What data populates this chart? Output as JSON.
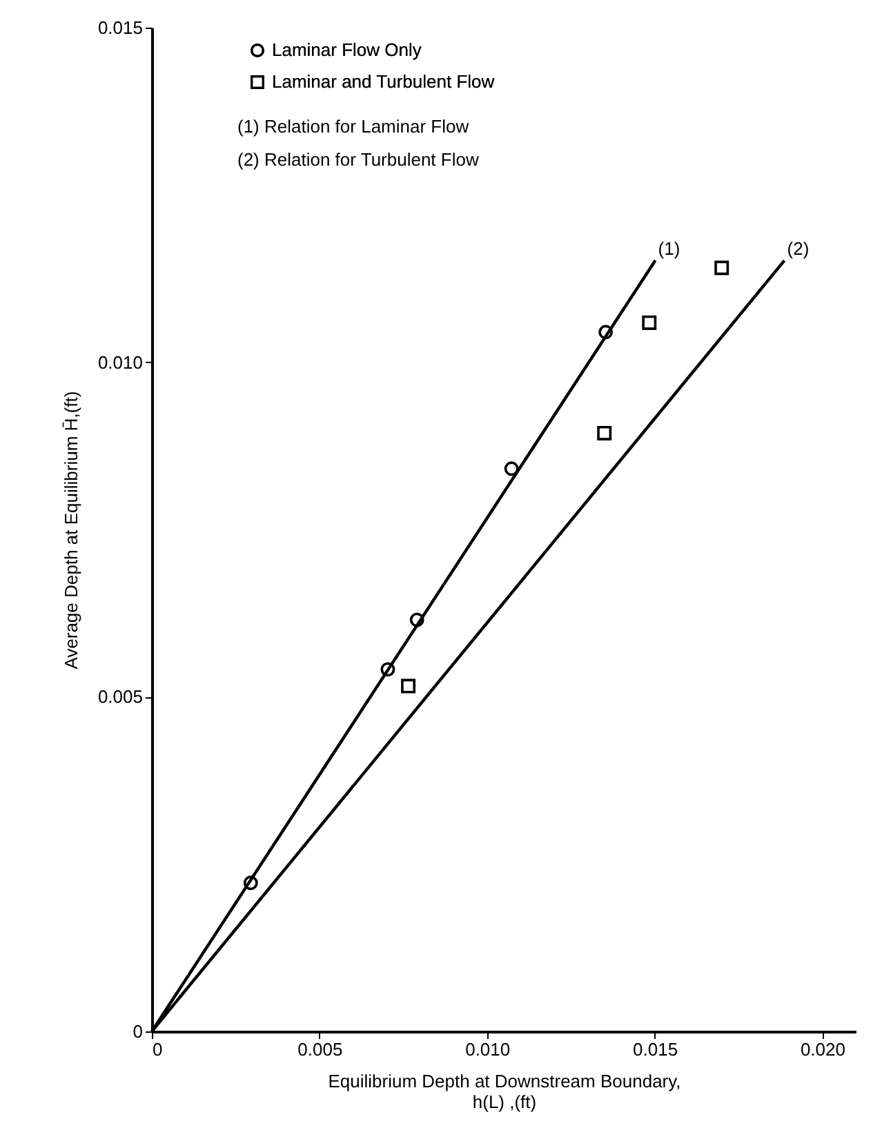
{
  "chart_data": {
    "type": "scatter",
    "xlabel": "Equilibrium Depth at Downstream Boundary,\nh(L) ,(ft)",
    "ylabel": "Average Depth at Equilibrium H̄,(ft)",
    "xlim": [
      0,
      0.021
    ],
    "ylim": [
      0,
      0.015
    ],
    "xticks": [
      0,
      0.005,
      {
        "value": 0.01,
        "label": "0.010"
      },
      0.015,
      {
        "value": 0.02,
        "label": "0.020"
      }
    ],
    "yticks": [
      0,
      0.005,
      {
        "value": 0.01,
        "label": "0.010"
      },
      0.015
    ],
    "grid": false,
    "legend": "top left",
    "series": [
      {
        "name": "Laminar Flow Only",
        "color": "#000000",
        "marker": "circle",
        "x": [
          0.00295,
          0.00704,
          0.00791,
          0.01073,
          0.01354
        ],
        "values": [
          0.00222,
          0.00541,
          0.00615,
          0.00841,
          0.01045
        ]
      },
      {
        "name": "Laminar and Turbulent Flow",
        "color": "#000000",
        "marker": "square",
        "x": [
          0.00765,
          0.0135,
          0.01484,
          0.017
        ],
        "values": [
          0.00516,
          0.00894,
          0.01059,
          0.01141
        ]
      },
      {
        "type": "line",
        "color": "#000000",
        "marker": "none",
        "line_style": "solid",
        "x": [
          0,
          0.01502
        ],
        "values": [
          0,
          0.01152
        ]
      },
      {
        "type": "line",
        "color": "#000000",
        "marker": "none",
        "line_style": "solid",
        "x": [
          0,
          0.01887
        ],
        "values": [
          0,
          0.01152
        ]
      }
    ],
    "annotations": [
      "(1) Relation for Laminar Flow",
      "(2) Relation for Turbulent Flow",
      {
        "text": "(1)",
        "x": 0.01502,
        "y": 0.01152
      },
      {
        "text": "(2)",
        "x": 0.01887,
        "y": 0.01152
      }
    ]
  }
}
